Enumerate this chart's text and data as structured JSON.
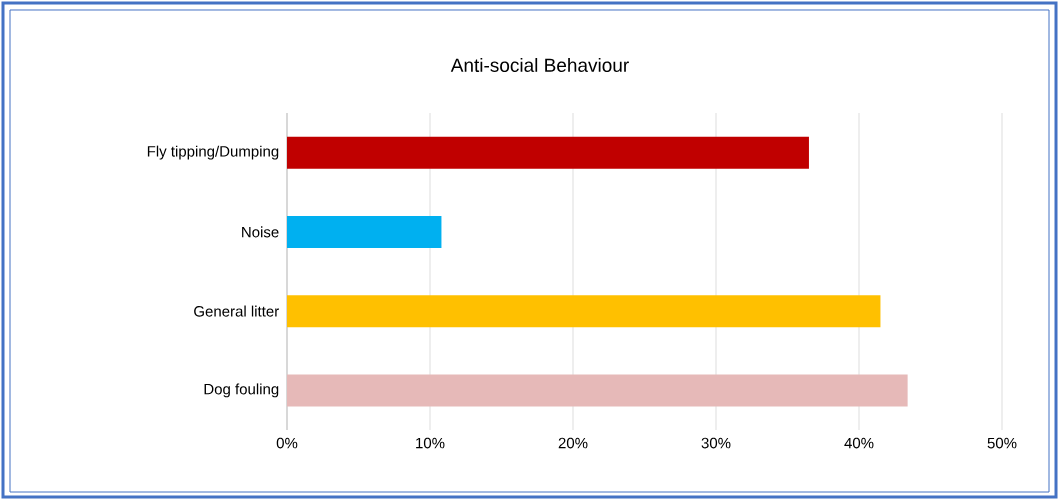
{
  "chart_data": {
    "type": "bar",
    "orientation": "horizontal",
    "title": "Anti-social Behaviour",
    "categories": [
      "Fly tipping/Dumping",
      "Noise",
      "General litter",
      "Dog fouling"
    ],
    "values": [
      36.5,
      10.8,
      41.5,
      43.4
    ],
    "colors": [
      "#c00000",
      "#00b0f0",
      "#ffc000",
      "#e6b9b8"
    ],
    "xlim": [
      0,
      50
    ],
    "xticks": [
      {
        "value": 0,
        "label": "0%"
      },
      {
        "value": 10,
        "label": "10%"
      },
      {
        "value": 20,
        "label": "20%"
      },
      {
        "value": 30,
        "label": "30%"
      },
      {
        "value": 40,
        "label": "40%"
      },
      {
        "value": 50,
        "label": "50%"
      }
    ],
    "grid": "x"
  }
}
